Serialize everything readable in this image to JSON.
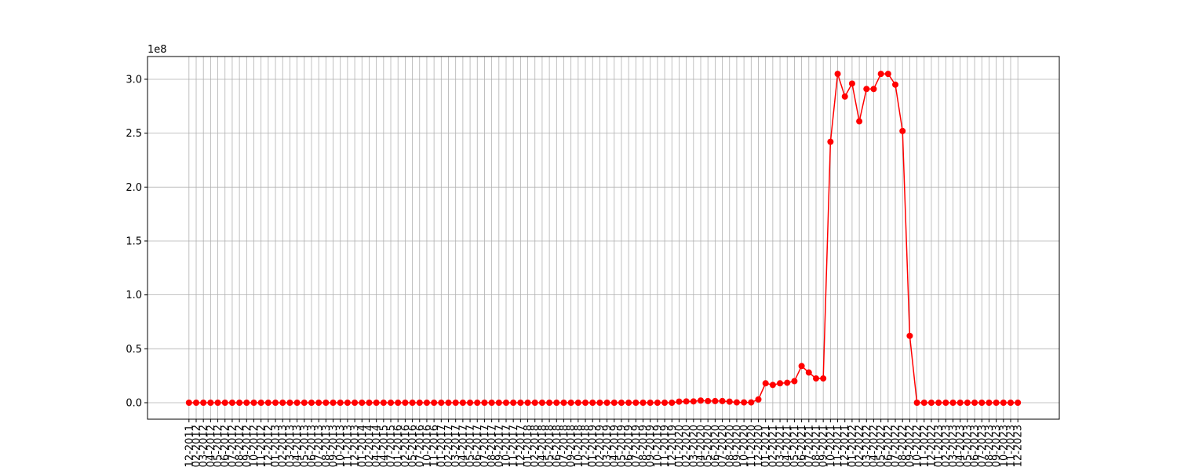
{
  "chart_data": {
    "type": "line",
    "y_offset_label": "1e8",
    "categories": [
      "12-2011",
      "02-2012",
      "03-2012",
      "04-2012",
      "05-2012",
      "06-2012",
      "07-2012",
      "08-2012",
      "09-2012",
      "10-2012",
      "11-2012",
      "12-2012",
      "01-2013",
      "02-2013",
      "03-2013",
      "04-2013",
      "05-2013",
      "06-2013",
      "07-2013",
      "08-2013",
      "09-2013",
      "10-2013",
      "11-2013",
      "12-2013",
      "01-2014",
      "02-2014",
      "04-2014",
      "04-2015",
      "07-2015",
      "01-2016",
      "02-2016",
      "05-2016",
      "07-2016",
      "10-2016",
      "11-2016",
      "01-2017",
      "02-2017",
      "03-2017",
      "04-2017",
      "05-2017",
      "06-2017",
      "07-2017",
      "08-2017",
      "09-2017",
      "10-2017",
      "11-2017",
      "12-2017",
      "01-2018",
      "02-2018",
      "04-2018",
      "05-2018",
      "06-2018",
      "07-2018",
      "09-2018",
      "10-2018",
      "12-2018",
      "01-2019",
      "02-2019",
      "03-2019",
      "04-2019",
      "05-2019",
      "06-2019",
      "07-2019",
      "08-2019",
      "09-2019",
      "10-2019",
      "11-2019",
      "12-2019",
      "01-2020",
      "02-2020",
      "03-2020",
      "04-2020",
      "05-2020",
      "06-2020",
      "07-2020",
      "08-2020",
      "09-2020",
      "10-2020",
      "11-2020",
      "12-2020",
      "01-2021",
      "02-2021",
      "03-2021",
      "04-2021",
      "05-2021",
      "06-2021",
      "07-2021",
      "08-2021",
      "09-2021",
      "10-2021",
      "11-2021",
      "12-2021",
      "01-2022",
      "02-2022",
      "03-2022",
      "04-2022",
      "05-2022",
      "06-2022",
      "07-2022",
      "08-2022",
      "09-2022",
      "10-2022",
      "11-2022",
      "12-2022",
      "01-2023",
      "02-2023",
      "03-2023",
      "04-2023",
      "05-2023",
      "06-2023",
      "07-2023",
      "08-2023",
      "09-2023",
      "10-2023",
      "11-2023",
      "12-2023"
    ],
    "series": [
      {
        "color": "#ff0000",
        "values": [
          0,
          0,
          0,
          0,
          0,
          0,
          0,
          0,
          0,
          0,
          0,
          0,
          0,
          0,
          0,
          0,
          0,
          0,
          0,
          0,
          0,
          0,
          0,
          0,
          0,
          0,
          0,
          0,
          0,
          0,
          0,
          0,
          0,
          0,
          0,
          0,
          0,
          0,
          0,
          0,
          0,
          0,
          0,
          0,
          0,
          0,
          0,
          0,
          0,
          0,
          0,
          0,
          0,
          0,
          0,
          0,
          0,
          0,
          0,
          0,
          0,
          0,
          0,
          0,
          0,
          0,
          0,
          0,
          0.01,
          0.012,
          0.012,
          0.02,
          0.015,
          0.015,
          0.015,
          0.01,
          0.003,
          0.003,
          0.003,
          0.03,
          0.18,
          0.165,
          0.18,
          0.185,
          0.2,
          0.34,
          0.28,
          0.225,
          0.225,
          2.42,
          3.05,
          2.84,
          2.96,
          2.61,
          2.91,
          2.91,
          3.05,
          3.05,
          2.95,
          2.52,
          0.62,
          0,
          0,
          0,
          0,
          0,
          0,
          0,
          0,
          0,
          0,
          0,
          0,
          0,
          0,
          0
        ]
      }
    ],
    "ylim": [
      -0.153,
      3.211
    ],
    "yticks": [
      {
        "value": 0,
        "label": "0.0"
      },
      0.5,
      {
        "value": 1,
        "label": "1.0"
      },
      1.5,
      {
        "value": 2,
        "label": "2.0"
      },
      2.5,
      {
        "value": 3,
        "label": "3.0"
      }
    ],
    "grid": true
  }
}
